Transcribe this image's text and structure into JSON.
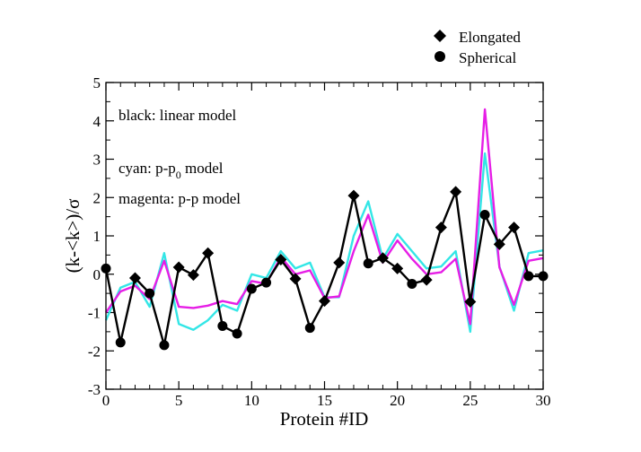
{
  "chart_data": {
    "type": "line",
    "xlabel": "Protein #ID",
    "ylabel": "(k-<k>)/σ",
    "xlim": [
      0,
      30
    ],
    "ylim": [
      -3,
      5
    ],
    "xticks": [
      0,
      5,
      10,
      15,
      20,
      25,
      30
    ],
    "yticks": [
      -3,
      -2,
      -1,
      0,
      1,
      2,
      3,
      4,
      5
    ],
    "legend": [
      {
        "label": "Elongated",
        "marker": "diamond"
      },
      {
        "label": "Spherical",
        "marker": "circle"
      }
    ],
    "annotations": {
      "black": "black: linear model",
      "cyan_prefix": "cyan: p-p",
      "cyan_sub": "0",
      "cyan_suffix": " model",
      "magenta": "magenta: p-p model"
    },
    "colors": {
      "linear": "#000000",
      "cyan": "#33e6e6",
      "magenta": "#e61ee6"
    },
    "series": [
      {
        "name": "linear model",
        "color": "black",
        "x": [
          0,
          1,
          2,
          3,
          4,
          5,
          6,
          7,
          8,
          9,
          10,
          11,
          12,
          13,
          14,
          15,
          16,
          17,
          18,
          19,
          20,
          21,
          22,
          23,
          24,
          25,
          26,
          27,
          28,
          29,
          30
        ],
        "values": [
          0.15,
          -1.78,
          -0.1,
          -0.5,
          -1.85,
          0.18,
          -0.02,
          0.55,
          -1.35,
          -1.55,
          -0.38,
          -0.22,
          0.38,
          -0.12,
          -1.4,
          -0.7,
          0.3,
          2.05,
          0.28,
          0.42,
          0.15,
          -0.25,
          -0.15,
          1.22,
          2.15,
          -0.72,
          1.55,
          0.78,
          1.22,
          -0.05,
          -0.05
        ],
        "markers": [
          "circle",
          "circle",
          "diamond",
          "circle",
          "circle",
          "diamond",
          "diamond",
          "diamond",
          "circle",
          "circle",
          "circle",
          "circle",
          "diamond",
          "diamond",
          "circle",
          "diamond",
          "diamond",
          "diamond",
          "circle",
          "diamond",
          "diamond",
          "circle",
          "diamond",
          "diamond",
          "diamond",
          "diamond",
          "circle",
          "diamond",
          "diamond",
          "circle",
          "circle"
        ]
      },
      {
        "name": "p-p0 model",
        "color": "cyan",
        "x": [
          0,
          1,
          2,
          3,
          4,
          5,
          6,
          7,
          8,
          9,
          10,
          11,
          12,
          13,
          14,
          15,
          16,
          17,
          18,
          19,
          20,
          21,
          22,
          23,
          24,
          25,
          26,
          27,
          28,
          29,
          30
        ],
        "values": [
          -1.2,
          -0.35,
          -0.2,
          -0.85,
          0.55,
          -1.3,
          -1.45,
          -1.2,
          -0.8,
          -0.95,
          0.0,
          -0.1,
          0.6,
          0.15,
          0.3,
          -0.6,
          -0.6,
          1.0,
          1.9,
          0.4,
          1.05,
          0.6,
          0.15,
          0.2,
          0.6,
          -1.5,
          3.15,
          0.2,
          -0.95,
          0.55,
          0.62
        ]
      },
      {
        "name": "p-p model",
        "color": "magenta",
        "x": [
          0,
          1,
          2,
          3,
          4,
          5,
          6,
          7,
          8,
          9,
          10,
          11,
          12,
          13,
          14,
          15,
          16,
          17,
          18,
          19,
          20,
          21,
          22,
          23,
          24,
          25,
          26,
          27,
          28,
          29,
          30
        ],
        "values": [
          -1.0,
          -0.45,
          -0.3,
          -0.65,
          0.35,
          -0.85,
          -0.88,
          -0.82,
          -0.7,
          -0.78,
          -0.18,
          -0.25,
          0.45,
          0.0,
          0.1,
          -0.62,
          -0.58,
          0.6,
          1.55,
          0.3,
          0.88,
          0.4,
          0.0,
          0.05,
          0.4,
          -1.3,
          4.3,
          0.18,
          -0.8,
          0.35,
          0.42
        ]
      }
    ]
  }
}
